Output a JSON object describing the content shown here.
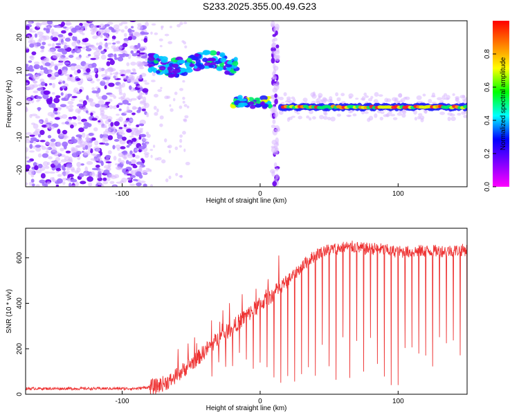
{
  "title": "S233.2025.355.00.49.G23",
  "chart_data": [
    {
      "type": "heatmap",
      "title": "S233.2025.355.00.49.G23",
      "xlabel": "Height of straight line (km)",
      "ylabel": "Frequency (Hz)",
      "xlim": [
        -170,
        150
      ],
      "ylim": [
        -25,
        25
      ],
      "xticks": [
        "-100",
        "0",
        "100"
      ],
      "yticks": [
        "20",
        "10",
        "0",
        "-10",
        "-20"
      ],
      "colorbar": {
        "label": "Normalized spectral amplitude",
        "ticks": [
          "0.0",
          "0.2",
          "0.4",
          "0.6",
          "0.8"
        ],
        "range": [
          0,
          1
        ],
        "colors": [
          "#ff00ff",
          "#7f00ff",
          "#0000ff",
          "#00ffff",
          "#00ff00",
          "#ffff00",
          "#ff7f00",
          "#ff0000"
        ]
      },
      "features": [
        {
          "name": "diffuse noise",
          "x_range": [
            -170,
            -82
          ],
          "freq_range": [
            -25,
            25
          ],
          "amplitude": 0.15
        },
        {
          "name": "upper band",
          "x_range": [
            -80,
            -17
          ],
          "freq_center": 12,
          "amplitude": 0.3
        },
        {
          "name": "transition blob",
          "x_range": [
            -20,
            8
          ],
          "freq_center": 0.5,
          "amplitude": 0.45
        },
        {
          "name": "vertical streak",
          "x_at": 11,
          "freq_range": [
            -25,
            25
          ],
          "amplitude": 0.15
        },
        {
          "name": "carrier line",
          "x_range": [
            15,
            150
          ],
          "freq_center": -1,
          "amplitude": 0.9
        }
      ]
    },
    {
      "type": "line",
      "xlabel": "Height of straight line (km)",
      "ylabel": "SNR (10 * v/v)",
      "xlim": [
        -170,
        150
      ],
      "ylim": [
        0,
        730
      ],
      "xticks": [
        "-100",
        "0",
        "100"
      ],
      "yticks": [
        "0",
        "200",
        "400",
        "600"
      ],
      "series": [
        {
          "name": "SNR",
          "color": "#ee3333",
          "x": [
            -170,
            -150,
            -130,
            -110,
            -90,
            -75,
            -65,
            -55,
            -45,
            -35,
            -25,
            -15,
            -5,
            5,
            15,
            25,
            35,
            45,
            55,
            65,
            75,
            85,
            95,
            105,
            115,
            125,
            135,
            150
          ],
          "values": [
            25,
            25,
            25,
            25,
            25,
            35,
            60,
            110,
            160,
            220,
            270,
            320,
            370,
            420,
            470,
            530,
            590,
            630,
            640,
            650,
            640,
            640,
            630,
            625,
            630,
            630,
            630,
            635
          ]
        }
      ],
      "dropouts_every_km": 5
    }
  ]
}
